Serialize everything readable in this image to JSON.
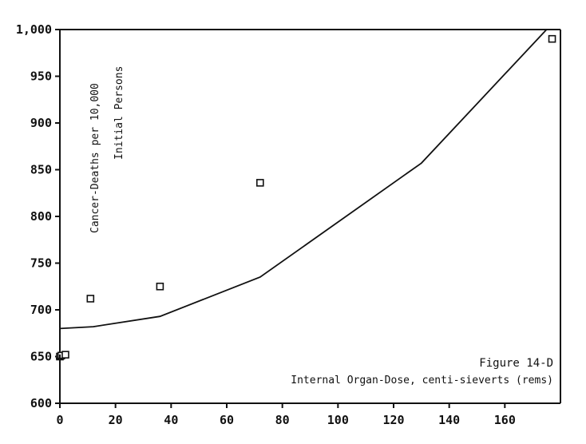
{
  "chart_data": {
    "type": "scatter",
    "title": "",
    "xlabel": "Internal Organ-Dose, centi-sieverts (rems)",
    "ylabel": "",
    "annotations": {
      "y_axis_line1": "Cancer-Deaths per 10,000",
      "y_axis_line2": "Initial Persons",
      "figure_label": "Figure 14-D"
    },
    "xlim": [
      0,
      180
    ],
    "ylim": [
      600,
      1000
    ],
    "x_ticks": [
      0,
      20,
      40,
      60,
      80,
      100,
      120,
      140,
      160
    ],
    "x_tick_labels": [
      "0",
      "20",
      "40",
      "60",
      "80",
      "100",
      "120",
      "140",
      "160"
    ],
    "y_ticks": [
      600,
      650,
      700,
      750,
      800,
      850,
      900,
      950,
      1000
    ],
    "y_tick_labels": [
      "600",
      "650",
      "700",
      "750",
      "800",
      "850",
      "900",
      "950",
      "1,000"
    ],
    "grid": false,
    "series": [
      {
        "kind": "points",
        "marker": "square",
        "points": [
          {
            "x": 0,
            "y": 650
          },
          {
            "x": 0.5,
            "y": 651
          },
          {
            "x": 2,
            "y": 652
          },
          {
            "x": 11,
            "y": 712
          },
          {
            "x": 36,
            "y": 725
          },
          {
            "x": 72,
            "y": 836
          },
          {
            "x": 177,
            "y": 990
          }
        ]
      },
      {
        "kind": "points",
        "marker": "plus",
        "points": [
          {
            "x": 0,
            "y": 648
          }
        ]
      },
      {
        "kind": "line",
        "points": [
          {
            "x": 0,
            "y": 680
          },
          {
            "x": 12,
            "y": 682
          },
          {
            "x": 36,
            "y": 693
          },
          {
            "x": 72,
            "y": 735
          },
          {
            "x": 130,
            "y": 857
          },
          {
            "x": 175,
            "y": 1000
          }
        ]
      }
    ]
  }
}
